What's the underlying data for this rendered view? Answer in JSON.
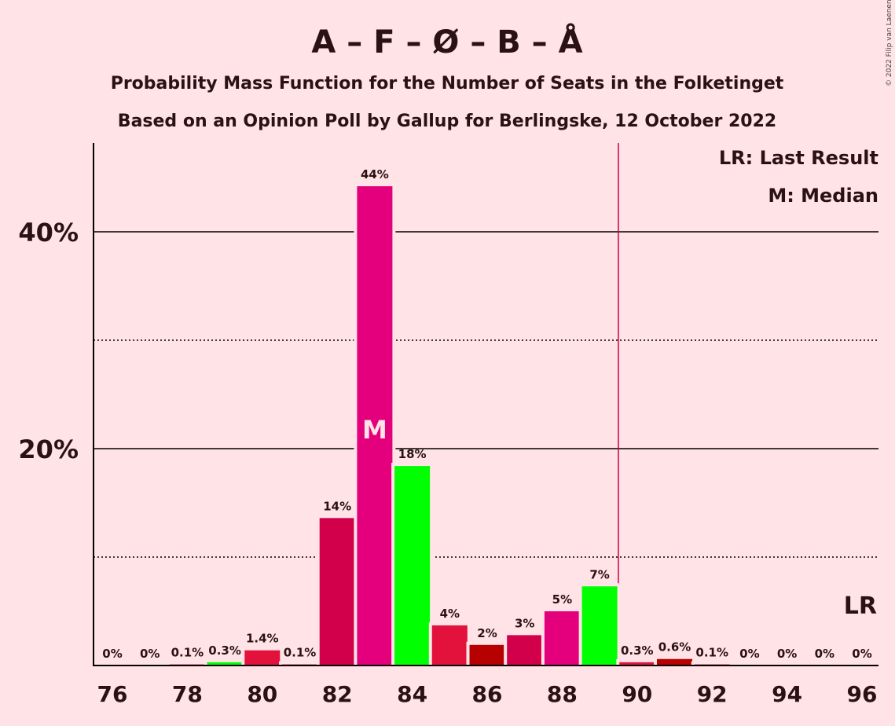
{
  "title": "A – F – Ø – B – Å",
  "subtitle1": "Probability Mass Function for the Number of Seats in the Folketinget",
  "subtitle2": "Based on an Opinion Poll by Gallup for Berlingske, 12 October 2022",
  "copyright": "© 2022 Filip van Laenen",
  "legend": {
    "last_result": "LR: Last Result",
    "median": "M: Median"
  },
  "markers": {
    "median_label": "M",
    "last_result_label": "LR"
  },
  "chart_data": {
    "type": "bar",
    "title": "A – F – Ø – B – Å",
    "x": [
      76,
      77,
      78,
      79,
      80,
      81,
      82,
      83,
      84,
      85,
      86,
      87,
      88,
      89,
      90,
      91,
      92,
      93,
      94,
      95,
      96
    ],
    "values": [
      0,
      0,
      0.1,
      0.3,
      1.4,
      0.1,
      13.6,
      44.2,
      18.4,
      3.7,
      1.9,
      2.8,
      5.0,
      7.3,
      0.3,
      0.6,
      0.1,
      0,
      0,
      0,
      0
    ],
    "labels": [
      "0%",
      "0%",
      "0.1%",
      "0.3%",
      "1.4%",
      "0.1%",
      "14%",
      "44%",
      "18%",
      "4%",
      "2%",
      "3%",
      "5%",
      "7%",
      "0.3%",
      "0.6%",
      "0.1%",
      "0%",
      "0%",
      "0%",
      "0%"
    ],
    "colors": [
      "#E4007C",
      "#E4007C",
      "#E4007C",
      "#00FF00",
      "#E2123C",
      "#D2004A",
      "#D2004A",
      "#E4007C",
      "#00FF00",
      "#E2123C",
      "#B70000",
      "#D2004A",
      "#E4007C",
      "#00FF00",
      "#E2123C",
      "#B70000",
      "#D2004A",
      "#E4007C",
      "#00FF00",
      "#E2123C",
      "#B70000"
    ],
    "x_ticks": [
      76,
      78,
      80,
      82,
      84,
      86,
      88,
      90,
      92,
      94,
      96
    ],
    "y_ticks": [
      20,
      40
    ],
    "y_tick_labels": [
      "20%",
      "40%"
    ],
    "y_minor_grid": [
      10,
      30
    ],
    "ylim": [
      0,
      48
    ],
    "median": 83,
    "majority_line": 89.5,
    "last_result": 96,
    "legend_position": "top-right"
  }
}
